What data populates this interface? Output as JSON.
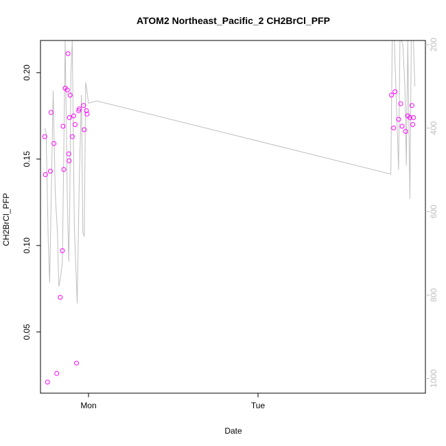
{
  "chart_data": {
    "type": "scatter",
    "title": "ATOM2 Northeast_Pacific_2 CH2BrCl_PFP",
    "xlabel": "Date",
    "ylabel": "CH2BrCl_PFP",
    "x_ticks": [
      "Mon",
      "Tue"
    ],
    "x_tick_values": [
      0,
      24
    ],
    "xlim": [
      -6.8,
      47.7
    ],
    "ylim": [
      0.0146,
      0.2186
    ],
    "y_ticks": [
      0.05,
      0.1,
      0.15,
      0.2
    ],
    "y_tick_labels": [
      "0.05",
      "0.10",
      "0.15",
      "0.20"
    ],
    "y2_ticks": [
      200,
      400,
      600,
      800,
      1000
    ],
    "y2_tick_labels": [
      "200",
      "400",
      "600",
      "800",
      "1000"
    ],
    "y2lim": [
      1035,
      190
    ],
    "point_color": "#ff00ff",
    "line_color": "#bebebe",
    "grid": false,
    "series": [
      {
        "type": "scatter",
        "points": [
          {
            "x": -6.2,
            "y": 0.163
          },
          {
            "x": -6.1,
            "y": 0.141
          },
          {
            "x": -5.8,
            "y": 0.021
          },
          {
            "x": -5.4,
            "y": 0.143
          },
          {
            "x": -5.3,
            "y": 0.177
          },
          {
            "x": -4.9,
            "y": 0.159
          },
          {
            "x": -4.5,
            "y": 0.026
          },
          {
            "x": -4.0,
            "y": 0.07
          },
          {
            "x": -3.7,
            "y": 0.097
          },
          {
            "x": -3.6,
            "y": 0.169
          },
          {
            "x": -3.5,
            "y": 0.144
          },
          {
            "x": -3.3,
            "y": 0.191
          },
          {
            "x": -3.0,
            "y": 0.19
          },
          {
            "x": -2.9,
            "y": 0.211
          },
          {
            "x": -2.8,
            "y": 0.153
          },
          {
            "x": -2.75,
            "y": 0.149
          },
          {
            "x": -2.7,
            "y": 0.174
          },
          {
            "x": -2.6,
            "y": 0.187
          },
          {
            "x": -2.3,
            "y": 0.163
          },
          {
            "x": -2.1,
            "y": 0.175
          },
          {
            "x": -1.9,
            "y": 0.17
          },
          {
            "x": -1.7,
            "y": 0.032
          },
          {
            "x": -1.4,
            "y": 0.178
          },
          {
            "x": -1.3,
            "y": 0.179
          },
          {
            "x": -0.7,
            "y": 0.181
          },
          {
            "x": -0.6,
            "y": 0.167
          },
          {
            "x": -0.3,
            "y": 0.178
          },
          {
            "x": -0.2,
            "y": 0.176
          },
          {
            "x": 42.9,
            "y": 0.187
          },
          {
            "x": 43.2,
            "y": 0.168
          },
          {
            "x": 43.4,
            "y": 0.189
          },
          {
            "x": 43.9,
            "y": 0.173
          },
          {
            "x": 44.2,
            "y": 0.182
          },
          {
            "x": 44.4,
            "y": 0.169
          },
          {
            "x": 44.9,
            "y": 0.166
          },
          {
            "x": 45.2,
            "y": 0.175
          },
          {
            "x": 45.5,
            "y": 0.174
          },
          {
            "x": 45.8,
            "y": 0.181
          },
          {
            "x": 45.9,
            "y": 0.17
          },
          {
            "x": 46.0,
            "y": 0.174
          }
        ]
      },
      {
        "type": "line",
        "axis": "right",
        "points": [
          {
            "x": -6.2,
            "y": 400
          },
          {
            "x": -6.0,
            "y": 410
          },
          {
            "x": -5.7,
            "y": 670
          },
          {
            "x": -5.5,
            "y": 770
          },
          {
            "x": -5.0,
            "y": 310
          },
          {
            "x": -4.7,
            "y": 560
          },
          {
            "x": -4.4,
            "y": 650
          },
          {
            "x": -4.2,
            "y": 780
          },
          {
            "x": -3.9,
            "y": 750
          },
          {
            "x": -3.7,
            "y": 720
          },
          {
            "x": -3.5,
            "y": 450
          },
          {
            "x": -3.3,
            "y": 190
          },
          {
            "x": -3.0,
            "y": 570
          },
          {
            "x": -2.8,
            "y": 720
          },
          {
            "x": -2.65,
            "y": 580
          },
          {
            "x": -2.5,
            "y": 270
          },
          {
            "x": -2.3,
            "y": 190
          },
          {
            "x": -2.0,
            "y": 640
          },
          {
            "x": -1.6,
            "y": 820
          },
          {
            "x": -1.3,
            "y": 520
          },
          {
            "x": -1.0,
            "y": 320
          },
          {
            "x": -0.8,
            "y": 650
          },
          {
            "x": -0.6,
            "y": 660
          },
          {
            "x": -0.4,
            "y": 290
          },
          {
            "x": 0.0,
            "y": 340
          },
          {
            "x": 1.2,
            "y": 335
          },
          {
            "x": 42.8,
            "y": 510
          },
          {
            "x": 43.0,
            "y": 190
          },
          {
            "x": 43.3,
            "y": 190
          },
          {
            "x": 43.9,
            "y": 500
          },
          {
            "x": 44.1,
            "y": 190
          },
          {
            "x": 44.3,
            "y": 190
          },
          {
            "x": 44.5,
            "y": 200
          },
          {
            "x": 44.8,
            "y": 300
          },
          {
            "x": 45.0,
            "y": 490
          },
          {
            "x": 45.2,
            "y": 190
          },
          {
            "x": 45.5,
            "y": 570
          },
          {
            "x": 45.7,
            "y": 190
          },
          {
            "x": 46.0,
            "y": 190
          },
          {
            "x": 46.2,
            "y": 300
          }
        ]
      }
    ]
  }
}
